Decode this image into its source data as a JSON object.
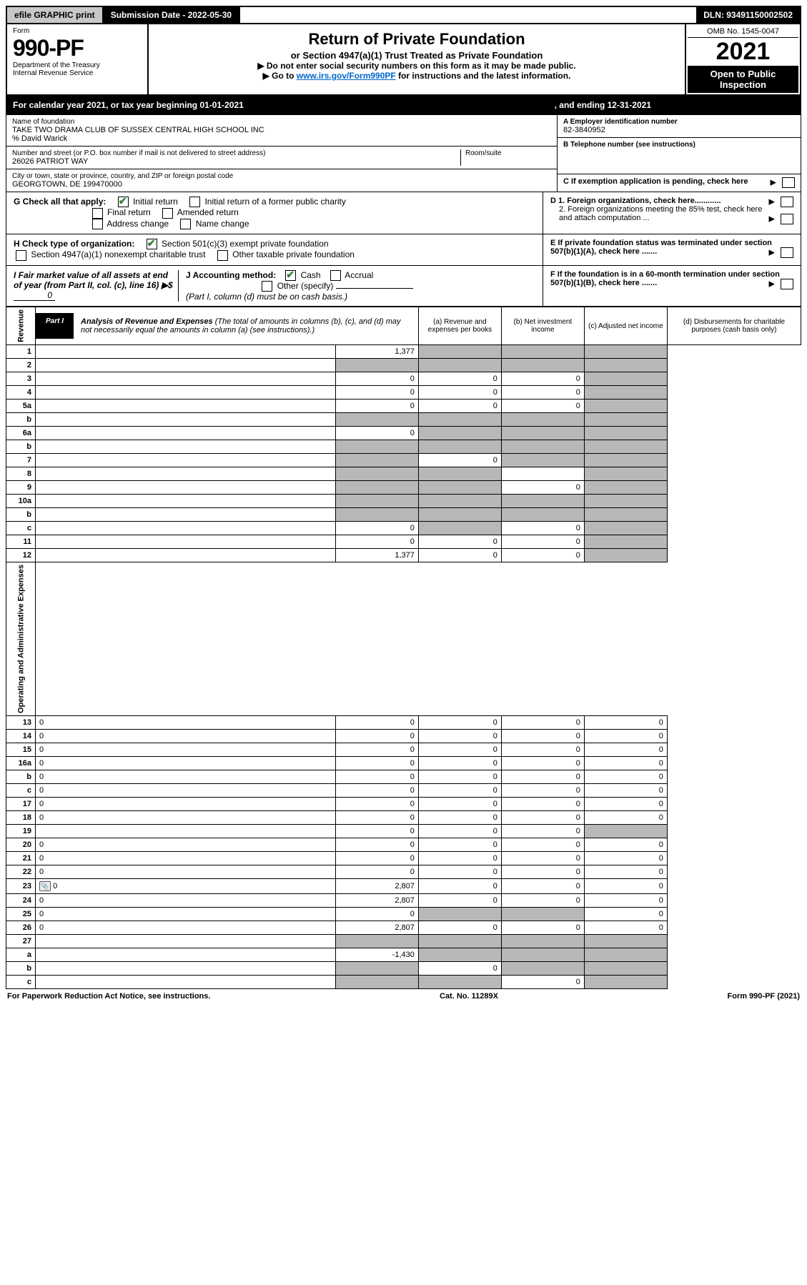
{
  "topbar": {
    "efile": "efile GRAPHIC print",
    "submission_label": "Submission Date - 2022-05-30",
    "dln": "DLN: 93491150002502"
  },
  "header": {
    "form_word": "Form",
    "form_no": "990-PF",
    "dept": "Department of the Treasury",
    "irs": "Internal Revenue Service",
    "title": "Return of Private Foundation",
    "subtitle": "or Section 4947(a)(1) Trust Treated as Private Foundation",
    "note1": "▶ Do not enter social security numbers on this form as it may be made public.",
    "note2_prefix": "▶ Go to ",
    "note2_link": "www.irs.gov/Form990PF",
    "note2_suffix": " for instructions and the latest information.",
    "omb": "OMB No. 1545-0047",
    "year": "2021",
    "inspect": "Open to Public Inspection"
  },
  "calendar": {
    "text1": "For calendar year 2021, or tax year beginning 01-01-2021",
    "text2": ", and ending 12-31-2021"
  },
  "org": {
    "name_label": "Name of foundation",
    "name": "TAKE TWO DRAMA CLUB OF SUSSEX CENTRAL HIGH SCHOOL INC",
    "care_of": "% David Warick",
    "addr_label": "Number and street (or P.O. box number if mail is not delivered to street address)",
    "addr": "26026 PATRIOT WAY",
    "room_label": "Room/suite",
    "city_label": "City or town, state or province, country, and ZIP or foreign postal code",
    "city": "GEORGTOWN, DE  199470000",
    "ein_label": "A Employer identification number",
    "ein": "82-3840952",
    "phone_label": "B Telephone number (see instructions)",
    "c_label": "C If exemption application is pending, check here",
    "d1": "D 1. Foreign organizations, check here............",
    "d2": "2. Foreign organizations meeting the 85% test, check here and attach computation ...",
    "e_label": "E  If private foundation status was terminated under section 507(b)(1)(A), check here .......",
    "f_label": "F  If the foundation is in a 60-month termination under section 507(b)(1)(B), check here .......",
    "g_label": "G Check all that apply:",
    "g_opts": [
      "Initial return",
      "Initial return of a former public charity",
      "Final return",
      "Amended return",
      "Address change",
      "Name change"
    ],
    "h_label": "H Check type of organization:",
    "h_opts": [
      "Section 501(c)(3) exempt private foundation",
      "Section 4947(a)(1) nonexempt charitable trust",
      "Other taxable private foundation"
    ],
    "i_label": "I Fair market value of all assets at end of year (from Part II, col. (c), line 16) ▶$",
    "i_val": "0",
    "j_label": "J Accounting method:",
    "j_opts": [
      "Cash",
      "Accrual"
    ],
    "j_other": "Other (specify)",
    "j_note": "(Part I, column (d) must be on cash basis.)"
  },
  "part1": {
    "tag": "Part I",
    "title": "Analysis of Revenue and Expenses",
    "title_note": "(The total of amounts in columns (b), (c), and (d) may not necessarily equal the amounts in column (a) (see instructions).)",
    "col_a": "(a) Revenue and expenses per books",
    "col_b": "(b) Net investment income",
    "col_c": "(c) Adjusted net income",
    "col_d": "(d) Disbursements for charitable purposes (cash basis only)",
    "side_rev": "Revenue",
    "side_exp": "Operating and Administrative Expenses"
  },
  "rows": [
    {
      "n": "1",
      "d": "",
      "a": "1,377",
      "b": "",
      "c": "",
      "sb": true,
      "sc": true,
      "sd": true
    },
    {
      "n": "2",
      "d": "",
      "a": "",
      "b": "",
      "c": "",
      "sa": true,
      "sb": true,
      "sc": true,
      "sd": true,
      "html": true
    },
    {
      "n": "3",
      "d": "",
      "a": "0",
      "b": "0",
      "c": "0",
      "sd": true
    },
    {
      "n": "4",
      "d": "",
      "a": "0",
      "b": "0",
      "c": "0",
      "sd": true
    },
    {
      "n": "5a",
      "d": "",
      "a": "0",
      "b": "0",
      "c": "0",
      "sd": true
    },
    {
      "n": "b",
      "d": "",
      "a": "",
      "b": "",
      "c": "",
      "sa": true,
      "sb": true,
      "sc": true,
      "sd": true
    },
    {
      "n": "6a",
      "d": "",
      "a": "0",
      "b": "",
      "c": "",
      "sb": true,
      "sc": true,
      "sd": true
    },
    {
      "n": "b",
      "d": "",
      "a": "",
      "b": "",
      "c": "",
      "sa": true,
      "sb": true,
      "sc": true,
      "sd": true
    },
    {
      "n": "7",
      "d": "",
      "a": "",
      "b": "0",
      "c": "",
      "sa": true,
      "sc": true,
      "sd": true
    },
    {
      "n": "8",
      "d": "",
      "a": "",
      "b": "",
      "c": "",
      "sa": true,
      "sb": true,
      "sd": true
    },
    {
      "n": "9",
      "d": "",
      "a": "",
      "b": "",
      "c": "0",
      "sa": true,
      "sb": true,
      "sd": true
    },
    {
      "n": "10a",
      "d": "",
      "a": "",
      "b": "",
      "c": "",
      "sa": true,
      "sb": true,
      "sc": true,
      "sd": true
    },
    {
      "n": "b",
      "d": "",
      "a": "",
      "b": "",
      "c": "",
      "sa": true,
      "sb": true,
      "sc": true,
      "sd": true
    },
    {
      "n": "c",
      "d": "",
      "a": "0",
      "b": "",
      "c": "0",
      "sb": true,
      "sd": true
    },
    {
      "n": "11",
      "d": "",
      "a": "0",
      "b": "0",
      "c": "0",
      "sd": true
    },
    {
      "n": "12",
      "d": "",
      "a": "1,377",
      "b": "0",
      "c": "0",
      "sd": true,
      "html": true
    },
    {
      "n": "13",
      "d": "0",
      "a": "0",
      "b": "0",
      "c": "0"
    },
    {
      "n": "14",
      "d": "0",
      "a": "0",
      "b": "0",
      "c": "0"
    },
    {
      "n": "15",
      "d": "0",
      "a": "0",
      "b": "0",
      "c": "0"
    },
    {
      "n": "16a",
      "d": "0",
      "a": "0",
      "b": "0",
      "c": "0"
    },
    {
      "n": "b",
      "d": "0",
      "a": "0",
      "b": "0",
      "c": "0"
    },
    {
      "n": "c",
      "d": "0",
      "a": "0",
      "b": "0",
      "c": "0"
    },
    {
      "n": "17",
      "d": "0",
      "a": "0",
      "b": "0",
      "c": "0"
    },
    {
      "n": "18",
      "d": "0",
      "a": "0",
      "b": "0",
      "c": "0"
    },
    {
      "n": "19",
      "d": "",
      "a": "0",
      "b": "0",
      "c": "0",
      "sd": true
    },
    {
      "n": "20",
      "d": "0",
      "a": "0",
      "b": "0",
      "c": "0"
    },
    {
      "n": "21",
      "d": "0",
      "a": "0",
      "b": "0",
      "c": "0"
    },
    {
      "n": "22",
      "d": "0",
      "a": "0",
      "b": "0",
      "c": "0"
    },
    {
      "n": "23",
      "d": "0",
      "a": "2,807",
      "b": "0",
      "c": "0",
      "icon": true
    },
    {
      "n": "24",
      "d": "0",
      "a": "2,807",
      "b": "0",
      "c": "0",
      "html": true
    },
    {
      "n": "25",
      "d": "0",
      "a": "0",
      "b": "",
      "c": "",
      "sb": true,
      "sc": true
    },
    {
      "n": "26",
      "d": "0",
      "a": "2,807",
      "b": "0",
      "c": "0",
      "html": true
    },
    {
      "n": "27",
      "d": "",
      "a": "",
      "b": "",
      "c": "",
      "sa": true,
      "sb": true,
      "sc": true,
      "sd": true
    },
    {
      "n": "a",
      "d": "",
      "a": "-1,430",
      "b": "",
      "c": "",
      "sb": true,
      "sc": true,
      "sd": true,
      "html": true
    },
    {
      "n": "b",
      "d": "",
      "a": "",
      "b": "0",
      "c": "",
      "sa": true,
      "sc": true,
      "sd": true,
      "html": true
    },
    {
      "n": "c",
      "d": "",
      "a": "",
      "b": "",
      "c": "0",
      "sa": true,
      "sb": true,
      "sd": true,
      "html": true
    }
  ],
  "footer": {
    "left": "For Paperwork Reduction Act Notice, see instructions.",
    "mid": "Cat. No. 11289X",
    "right": "Form 990-PF (2021)"
  }
}
